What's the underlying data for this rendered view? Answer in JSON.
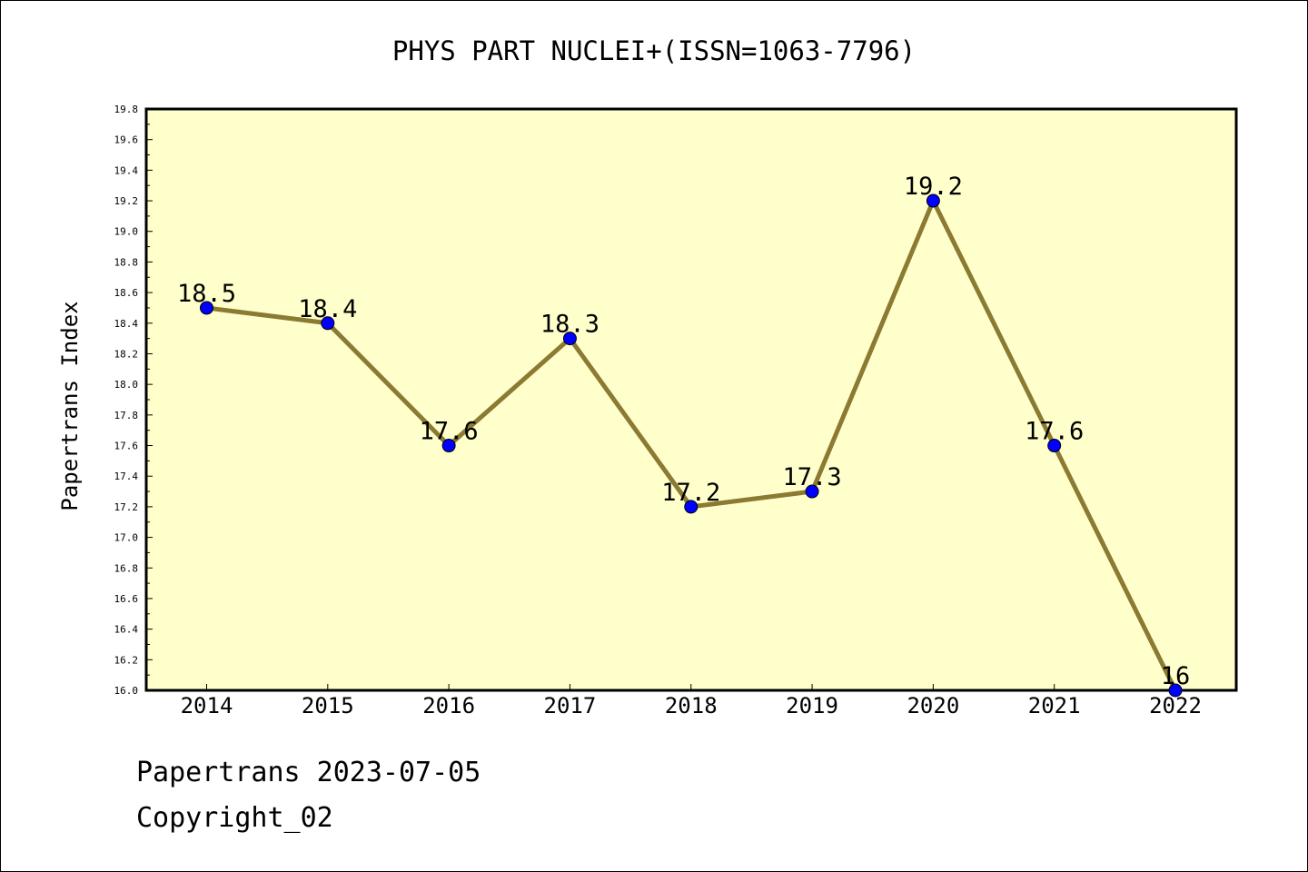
{
  "chart_data": {
    "type": "line",
    "title": "PHYS PART NUCLEI+(ISSN=1063-7796)",
    "ylabel": "Papertrans Index",
    "xlabel": "",
    "categories": [
      "2014",
      "2015",
      "2016",
      "2017",
      "2018",
      "2019",
      "2020",
      "2021",
      "2022"
    ],
    "values": [
      18.5,
      18.4,
      17.6,
      18.3,
      17.2,
      17.3,
      19.2,
      17.6,
      16
    ],
    "data_labels": [
      "18.5",
      "18.4",
      "17.6",
      "18.3",
      "17.2",
      "17.3",
      "19.2",
      "17.6",
      "16"
    ],
    "ylim": [
      16.0,
      19.8
    ],
    "yticks": [
      "16.0",
      "16.2",
      "16.4",
      "16.6",
      "16.8",
      "17.0",
      "17.2",
      "17.4",
      "17.6",
      "17.8",
      "18.0",
      "18.2",
      "18.4",
      "18.6",
      "18.8",
      "19.0",
      "19.2",
      "19.4",
      "19.6",
      "19.8"
    ],
    "grid": false,
    "colors": {
      "plot_background": "#ffffcc",
      "line": "#8c7a32",
      "marker": "#0000ff"
    }
  },
  "footer": {
    "line1": "Papertrans 2023-07-05",
    "line2": "Copyright_02"
  }
}
